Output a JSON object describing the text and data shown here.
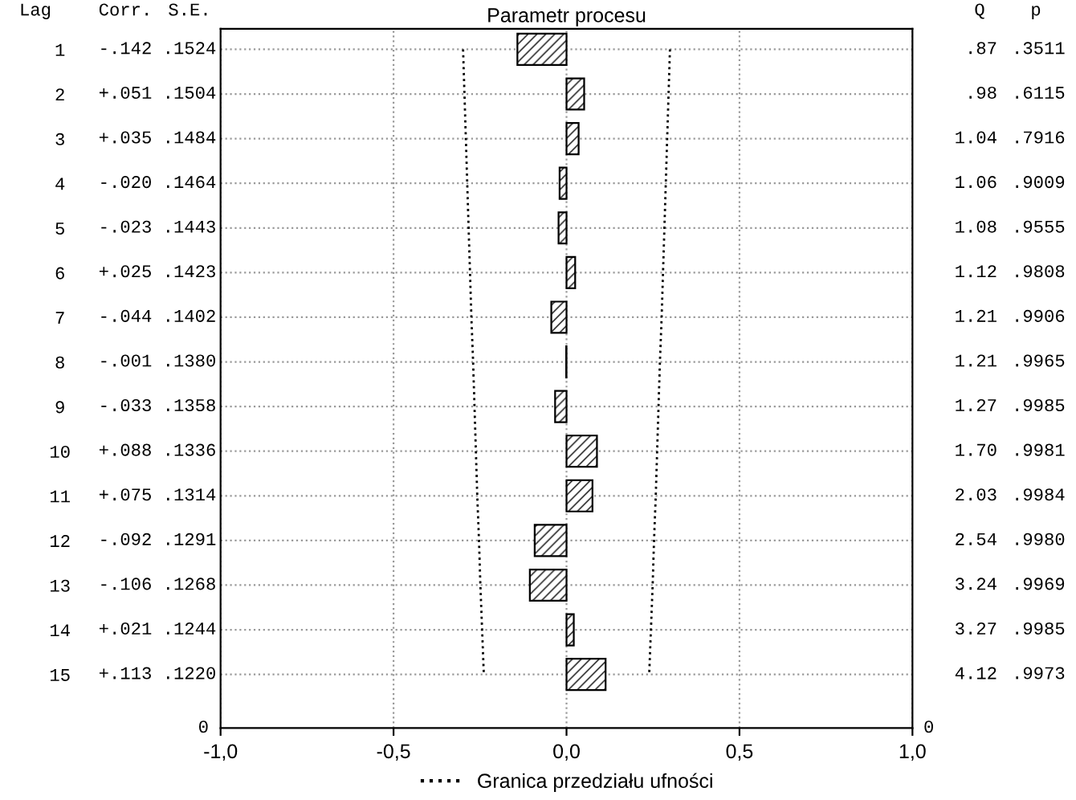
{
  "chart_data": {
    "type": "bar",
    "orientation": "horizontal",
    "title": "Parametr procesu",
    "categories": [
      "1",
      "2",
      "3",
      "4",
      "5",
      "6",
      "7",
      "8",
      "9",
      "10",
      "11",
      "12",
      "13",
      "14",
      "15"
    ],
    "series": [
      {
        "color": "#000000",
        "values": [
          -0.142,
          0.051,
          0.035,
          -0.02,
          -0.023,
          0.025,
          -0.044,
          -0.001,
          -0.033,
          0.088,
          0.075,
          -0.092,
          -0.106,
          0.021,
          0.113
        ],
        "value_labels": [
          "-.142",
          "+.051",
          "+.035",
          "-.020",
          "-.023",
          "+.025",
          "-.044",
          "-.001",
          "-.033",
          "+.088",
          "+.075",
          "-.092",
          "-.106",
          "+.021",
          "+.113"
        ]
      },
      {
        "type": "line",
        "name": "Granica przedziału ufności",
        "color": "#000000",
        "line_style": "dotted",
        "values": [
          0.299,
          0.295,
          0.291,
          0.287,
          0.283,
          0.279,
          0.275,
          0.27,
          0.266,
          0.262,
          0.258,
          0.253,
          0.249,
          0.244,
          0.239
        ]
      },
      {
        "type": "line",
        "color": "#000000",
        "line_style": "dotted",
        "values": [
          -0.299,
          -0.295,
          -0.291,
          -0.287,
          -0.283,
          -0.279,
          -0.275,
          -0.27,
          -0.266,
          -0.262,
          -0.258,
          -0.253,
          -0.249,
          -0.244,
          -0.239
        ]
      }
    ],
    "xlim": [
      -1,
      1
    ],
    "xticks": [
      {
        "value": -1,
        "label": "-1,0"
      },
      {
        "value": -0.5,
        "label": "-0,5"
      },
      {
        "value": 0,
        "label": "0,0"
      },
      {
        "value": 0.5,
        "label": "0,5"
      },
      {
        "value": 1,
        "label": "1,0"
      }
    ],
    "grid": true,
    "legend": "bottom",
    "annotations": [
      "Lag",
      "Corr.",
      "S.E.",
      "Q",
      "p",
      "0",
      "0",
      ".1524",
      ".87",
      ".3511",
      ".1504",
      ".98",
      ".6115",
      ".1484",
      "1.04",
      ".7916",
      ".1464",
      "1.06",
      ".9009",
      ".1443",
      "1.08",
      ".9555",
      ".1423",
      "1.12",
      ".9808",
      ".1402",
      "1.21",
      ".9906",
      ".1380",
      "1.21",
      ".9965",
      ".1358",
      "1.27",
      ".9985",
      ".1336",
      "1.70",
      ".9981",
      ".1314",
      "2.03",
      ".9984",
      ".1291",
      "2.54",
      ".9980",
      ".1268",
      "3.24",
      ".9969",
      ".1244",
      "3.27",
      ".9985",
      ".1220",
      "4.12",
      ".9973"
    ]
  }
}
